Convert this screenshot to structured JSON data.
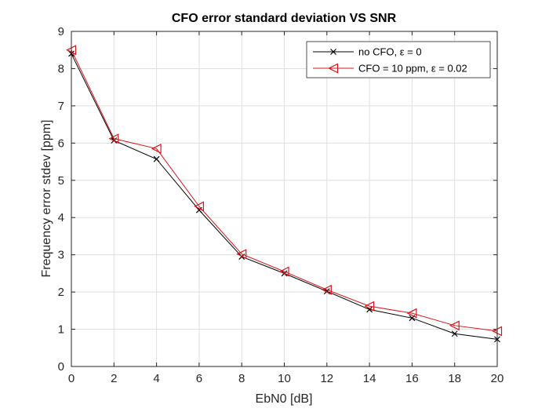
{
  "chart_data": {
    "type": "line",
    "title": "CFO error standard deviation VS SNR",
    "xlabel": "EbN0 [dB]",
    "ylabel": "Frequency error stdev [ppm]",
    "xlim": [
      0,
      20
    ],
    "ylim": [
      0,
      9
    ],
    "xticks": [
      "0",
      "2",
      "4",
      "6",
      "8",
      "10",
      "12",
      "14",
      "16",
      "18",
      "20"
    ],
    "yticks": [
      "0",
      "1",
      "2",
      "3",
      "4",
      "5",
      "6",
      "7",
      "8",
      "9"
    ],
    "grid": true,
    "legend_position": "top-right",
    "x": [
      0,
      2,
      4,
      6,
      8,
      10,
      12,
      14,
      16,
      18,
      20
    ],
    "series": [
      {
        "name": "no CFO, ε = 0",
        "color": "#000000",
        "marker": "x-mark",
        "values": [
          8.4,
          6.07,
          5.57,
          4.2,
          2.95,
          2.5,
          2.02,
          1.53,
          1.3,
          0.88,
          0.73
        ]
      },
      {
        "name": "CFO = 10 ppm, ε = 0.02",
        "color": "#d9141a",
        "marker": "left-triangle",
        "values": [
          8.5,
          6.12,
          5.85,
          4.3,
          3.02,
          2.55,
          2.06,
          1.62,
          1.43,
          1.1,
          0.95
        ]
      }
    ]
  }
}
